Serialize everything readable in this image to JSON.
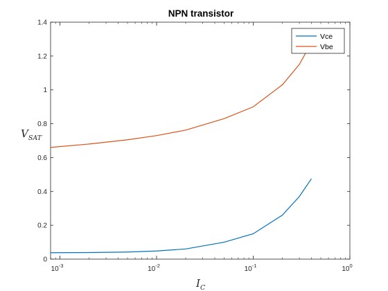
{
  "chart_data": {
    "type": "line",
    "title": "NPN transistor",
    "xlabel": {
      "base": "I",
      "sub": "C"
    },
    "ylabel": {
      "base": "V",
      "sub": "SAT"
    },
    "xscale": "log",
    "xlim": [
      0.0008,
      1
    ],
    "ylim": [
      0,
      1.4
    ],
    "xticks": [
      {
        "value": 0.001,
        "base": "10",
        "exp": "-3"
      },
      {
        "value": 0.01,
        "base": "10",
        "exp": "-2"
      },
      {
        "value": 0.1,
        "base": "10",
        "exp": "-1"
      },
      {
        "value": 1,
        "base": "10",
        "exp": "0"
      }
    ],
    "yticks": [
      {
        "value": 0,
        "label": "0"
      },
      {
        "value": 0.2,
        "label": "0.2"
      },
      {
        "value": 0.4,
        "label": "0.4"
      },
      {
        "value": 0.6,
        "label": "0.6"
      },
      {
        "value": 0.8,
        "label": "0.8"
      },
      {
        "value": 1.0,
        "label": "1"
      },
      {
        "value": 1.2,
        "label": "1.2"
      },
      {
        "value": 1.4,
        "label": "1.4"
      }
    ],
    "grid": false,
    "legend_position": "top-right",
    "series": [
      {
        "name": "Vce",
        "color": "#0072BD",
        "x": [
          0.0008,
          0.002,
          0.005,
          0.01,
          0.02,
          0.05,
          0.1,
          0.2,
          0.3,
          0.4
        ],
        "y": [
          0.038,
          0.039,
          0.042,
          0.048,
          0.06,
          0.1,
          0.15,
          0.26,
          0.37,
          0.475
        ]
      },
      {
        "name": "Vbe",
        "color": "#D95319",
        "x": [
          0.0008,
          0.002,
          0.005,
          0.01,
          0.02,
          0.05,
          0.1,
          0.2,
          0.3,
          0.4
        ],
        "y": [
          0.66,
          0.68,
          0.705,
          0.73,
          0.762,
          0.83,
          0.9,
          1.03,
          1.15,
          1.28
        ]
      }
    ]
  }
}
